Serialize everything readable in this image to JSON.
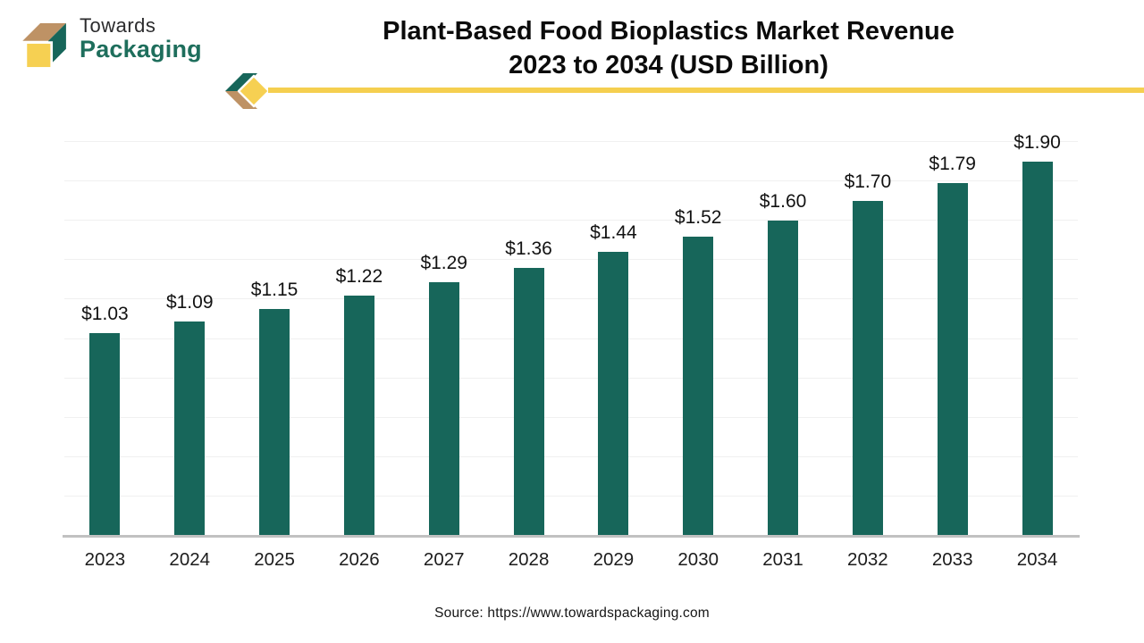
{
  "logo": {
    "line1": "Towards",
    "line2": "Packaging"
  },
  "title": {
    "line1": "Plant-Based Food Bioplastics Market Revenue",
    "line2": "2023 to 2034 (USD Billion)"
  },
  "source": "Source: https://www.towardspackaging.com",
  "colors": {
    "bar": "#17665A",
    "brand_green": "#1E6E5C",
    "accent_yellow": "#F5CF4F",
    "accent_tan": "#BE9265",
    "gridline": "#F0F0F0",
    "axis": "#C1C1C1"
  },
  "chart_data": {
    "type": "bar",
    "title": "Plant-Based Food Bioplastics Market Revenue 2023 to 2034 (USD Billion)",
    "categories": [
      "2023",
      "2024",
      "2025",
      "2026",
      "2027",
      "2028",
      "2029",
      "2030",
      "2031",
      "2032",
      "2033",
      "2034"
    ],
    "values": [
      1.03,
      1.09,
      1.15,
      1.22,
      1.29,
      1.36,
      1.44,
      1.52,
      1.6,
      1.7,
      1.79,
      1.9
    ],
    "value_labels": [
      "$1.03",
      "$1.09",
      "$1.15",
      "$1.22",
      "$1.29",
      "$1.36",
      "$1.44",
      "$1.52",
      "$1.60",
      "$1.70",
      "$1.79",
      "$1.90"
    ],
    "xlabel": "",
    "ylabel": "",
    "ylim": [
      0,
      2.0
    ],
    "gridline_step": 0.2,
    "grid": "horizontal-only",
    "legend": "none",
    "bar_color": "#17665A",
    "label_position": "above-bars"
  }
}
